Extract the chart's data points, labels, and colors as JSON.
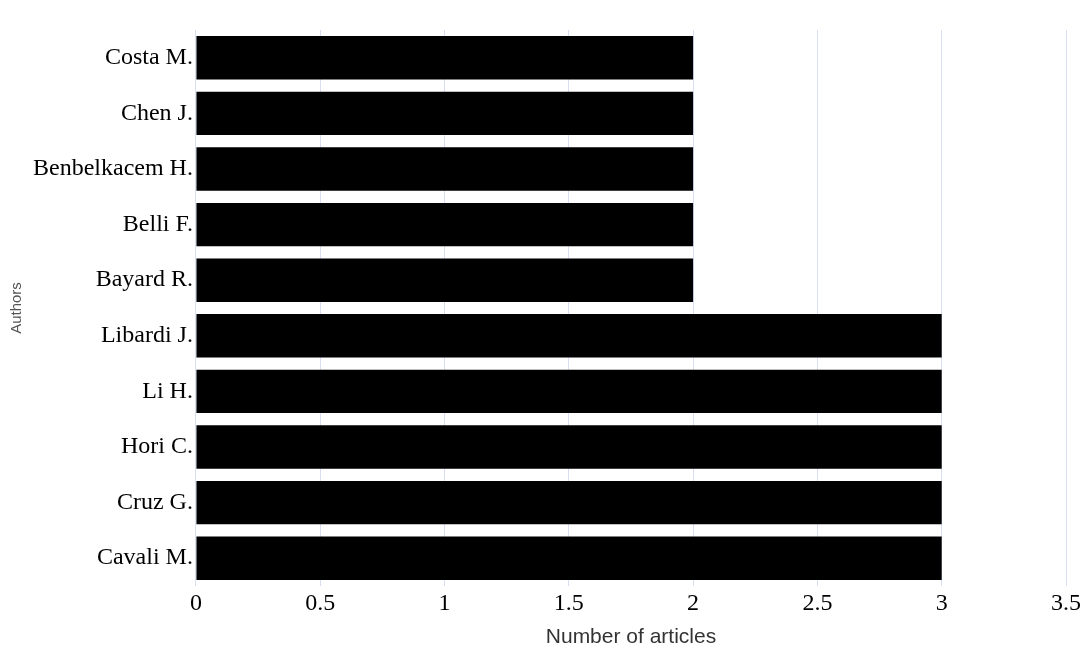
{
  "chart_data": {
    "type": "bar",
    "orientation": "horizontal",
    "categories": [
      "Costa M.",
      "Chen J.",
      "Benbelkacem H.",
      "Belli F.",
      "Bayard R.",
      "Libardi J.",
      "Li H.",
      "Hori C.",
      "Cruz G.",
      "Cavali M."
    ],
    "values": [
      2,
      2,
      2,
      2,
      2,
      3,
      3,
      3,
      3,
      3
    ],
    "color": "#000000",
    "xlim": [
      0,
      3.5
    ],
    "xticks": [
      0,
      0.5,
      1,
      1.5,
      2,
      2.5,
      3,
      3.5
    ],
    "xlabel": "Number of articles",
    "ylabel": "Authors",
    "grid": "x",
    "legend": false
  }
}
